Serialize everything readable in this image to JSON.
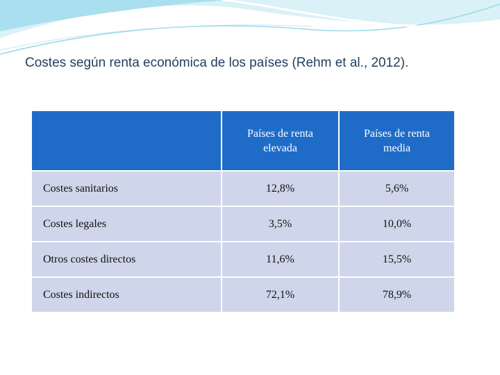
{
  "header": {
    "title": "Costes según renta económica de los países (Rehm et al., 2012)."
  },
  "table": {
    "columns": [
      "Países de renta elevada",
      "Países de renta media"
    ],
    "rows": [
      [
        "Costes sanitarios",
        "12,8%",
        "5,6%"
      ],
      [
        "Costes legales",
        "3,5%",
        "10,0%"
      ],
      [
        "Otros costes directos",
        "11,6%",
        "15,5%"
      ],
      [
        "Costes indirectos",
        "72,1%",
        "78,9%"
      ]
    ]
  }
}
